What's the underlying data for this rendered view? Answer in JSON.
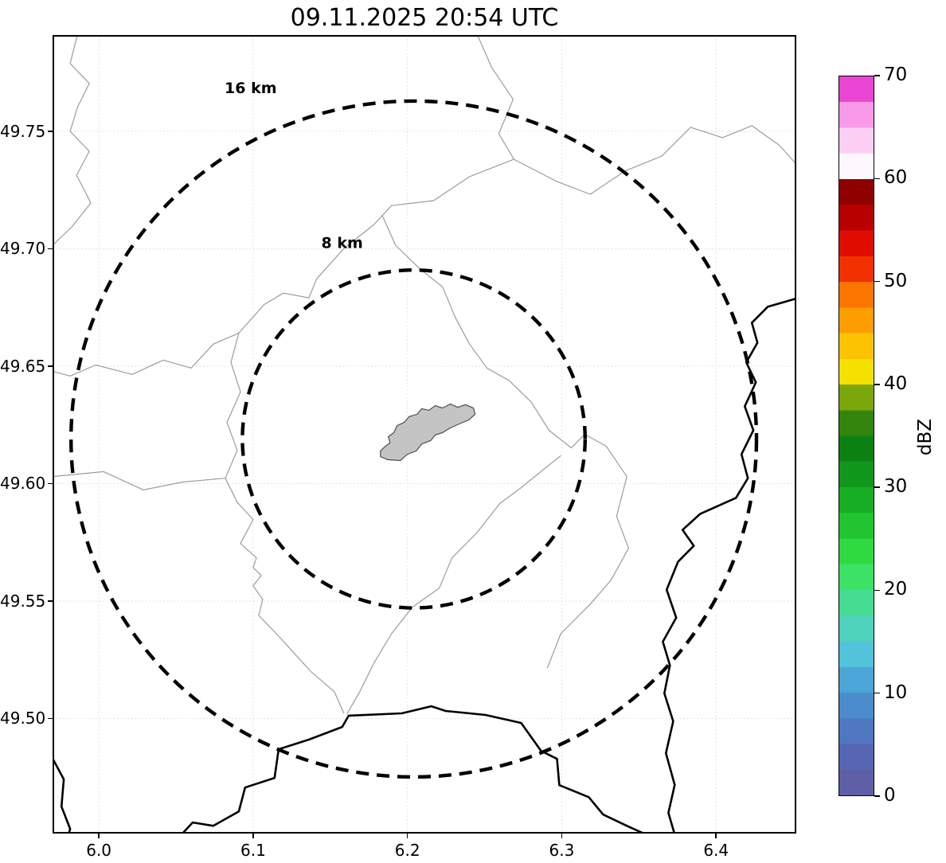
{
  "figure": {
    "title": "09.11.2025 20:54 UTC"
  },
  "chart_data": {
    "type": "map",
    "subtype": "radar-range-ring-map",
    "title": "09.11.2025 20:54 UTC",
    "xlim": [
      5.97,
      6.452
    ],
    "ylim": [
      49.451,
      49.791
    ],
    "x_tick_values": [
      6.0,
      6.1,
      6.2,
      6.3,
      6.4
    ],
    "x_tick_labels": [
      "6.0",
      "6.1",
      "6.2",
      "6.3",
      "6.4"
    ],
    "y_tick_values": [
      49.5,
      49.55,
      49.6,
      49.65,
      49.7,
      49.75
    ],
    "y_tick_labels": [
      "49.50",
      "49.55",
      "49.60",
      "49.65",
      "49.70",
      "49.75"
    ],
    "grid": {
      "visible": true,
      "color": "#dcdcdc"
    },
    "radar_echoes": [],
    "range_rings": {
      "center_lon": 6.2041,
      "center_lat": 49.619,
      "radii_km": [
        8,
        16
      ],
      "color": "#000000",
      "labels": [
        {
          "text": "8 km",
          "lon": 6.1577,
          "lat": 49.7004
        },
        {
          "text": "16 km",
          "lon": 6.0984,
          "lat": 49.7663
        }
      ]
    },
    "city_polygon": {
      "fill": "#c4c4c4",
      "stroke": "#4d4d4d",
      "points": [
        [
          6.1825,
          49.6115
        ],
        [
          6.1871,
          49.6102
        ],
        [
          6.1954,
          49.6098
        ],
        [
          6.2,
          49.6125
        ],
        [
          6.2057,
          49.6139
        ],
        [
          6.2093,
          49.6169
        ],
        [
          6.215,
          49.6183
        ],
        [
          6.218,
          49.6207
        ],
        [
          6.2227,
          49.6217
        ],
        [
          6.2278,
          49.6237
        ],
        [
          6.2335,
          49.6254
        ],
        [
          6.2397,
          49.6271
        ],
        [
          6.2438,
          49.6295
        ],
        [
          6.2428,
          49.6322
        ],
        [
          6.2376,
          49.6336
        ],
        [
          6.2325,
          49.6325
        ],
        [
          6.2278,
          49.6339
        ],
        [
          6.2227,
          49.6322
        ],
        [
          6.218,
          49.6332
        ],
        [
          6.2139,
          49.6312
        ],
        [
          6.2093,
          49.6319
        ],
        [
          6.2062,
          49.6295
        ],
        [
          6.201,
          49.6285
        ],
        [
          6.1979,
          49.6261
        ],
        [
          6.1933,
          49.6247
        ],
        [
          6.1912,
          49.6217
        ],
        [
          6.1876,
          49.62
        ],
        [
          6.1887,
          49.6173
        ],
        [
          6.1851,
          49.6156
        ],
        [
          6.1825,
          49.6139
        ]
      ]
    },
    "country_borders": {
      "color": "#000000",
      "width": 2.6,
      "paths": [
        [
          [
            6.4515,
            49.6787
          ],
          [
            6.4335,
            49.6753
          ],
          [
            6.4232,
            49.6685
          ],
          [
            6.4268,
            49.66
          ],
          [
            6.4196,
            49.6516
          ],
          [
            6.4258,
            49.6431
          ],
          [
            6.4186,
            49.6329
          ],
          [
            6.4242,
            49.6227
          ],
          [
            6.4165,
            49.6125
          ],
          [
            6.4206,
            49.6023
          ],
          [
            6.4129,
            49.5939
          ],
          [
            6.3897,
            49.5871
          ],
          [
            6.3783,
            49.5803
          ],
          [
            6.3856,
            49.5735
          ],
          [
            6.3753,
            49.5667
          ],
          [
            6.368,
            49.5548
          ],
          [
            6.3742,
            49.5429
          ],
          [
            6.3655,
            49.5327
          ],
          [
            6.3701,
            49.5226
          ],
          [
            6.3665,
            49.5107
          ],
          [
            6.3722,
            49.4988
          ],
          [
            6.3675,
            49.4852
          ],
          [
            6.3732,
            49.4717
          ],
          [
            6.3691,
            49.4598
          ],
          [
            6.3732,
            49.4506
          ]
        ],
        [
          [
            6.0536,
            49.4506
          ],
          [
            6.0608,
            49.4557
          ],
          [
            6.0742,
            49.4543
          ],
          [
            6.0907,
            49.4604
          ],
          [
            6.0948,
            49.4706
          ],
          [
            6.1139,
            49.4747
          ],
          [
            6.1165,
            49.4869
          ],
          [
            6.1361,
            49.491
          ],
          [
            6.1577,
            49.4964
          ],
          [
            6.1619,
            49.5012
          ],
          [
            6.1964,
            49.5022
          ],
          [
            6.2155,
            49.5052
          ],
          [
            6.2247,
            49.5032
          ],
          [
            6.2505,
            49.5015
          ],
          [
            6.2737,
            49.4981
          ],
          [
            6.2866,
            49.4862
          ],
          [
            6.2969,
            49.4828
          ],
          [
            6.2984,
            49.4716
          ],
          [
            6.3175,
            49.4665
          ],
          [
            6.3268,
            49.4591
          ],
          [
            6.3422,
            49.4543
          ],
          [
            6.3546,
            49.4506
          ]
        ],
        [
          [
            5.9701,
            49.4829
          ],
          [
            5.9773,
            49.4741
          ],
          [
            5.9758,
            49.4625
          ],
          [
            5.9814,
            49.453
          ],
          [
            5.9804,
            49.4506
          ]
        ]
      ]
    },
    "admin_lines": {
      "color": "#9c9c9c",
      "width": 1.2,
      "paths": [
        [
          [
            5.9861,
            49.7911
          ],
          [
            5.9814,
            49.7789
          ],
          [
            5.9938,
            49.7704
          ],
          [
            5.9861,
            49.7602
          ],
          [
            5.9814,
            49.75
          ],
          [
            5.9938,
            49.7415
          ],
          [
            5.9856,
            49.7313
          ],
          [
            5.9948,
            49.7195
          ],
          [
            5.9825,
            49.7093
          ],
          [
            5.9701,
            49.7015
          ]
        ],
        [
          [
            6.2453,
            49.7911
          ],
          [
            6.2546,
            49.7772
          ],
          [
            6.2685,
            49.7636
          ],
          [
            6.2592,
            49.749
          ],
          [
            6.269,
            49.7381
          ],
          [
            6.2969,
            49.7286
          ],
          [
            6.3185,
            49.7232
          ],
          [
            6.3407,
            49.733
          ],
          [
            6.3649,
            49.7395
          ],
          [
            6.3835,
            49.7517
          ],
          [
            6.4041,
            49.7473
          ],
          [
            6.4232,
            49.7524
          ],
          [
            6.4412,
            49.7439
          ],
          [
            6.4515,
            49.7364
          ]
        ],
        [
          [
            6.269,
            49.7381
          ],
          [
            6.2402,
            49.7307
          ],
          [
            6.217,
            49.7205
          ],
          [
            6.1897,
            49.7184
          ],
          [
            6.1783,
            49.7103
          ],
          [
            6.1588,
            49.7001
          ],
          [
            6.1412,
            49.6872
          ],
          [
            6.1361,
            49.6791
          ],
          [
            6.1196,
            49.6811
          ],
          [
            6.1072,
            49.6763
          ],
          [
            6.0907,
            49.6641
          ],
          [
            6.0742,
            49.6594
          ],
          [
            6.0598,
            49.6492
          ],
          [
            6.0417,
            49.6526
          ],
          [
            6.0216,
            49.6465
          ],
          [
            5.9979,
            49.6505
          ],
          [
            5.9814,
            49.6458
          ],
          [
            5.9701,
            49.6478
          ]
        ],
        [
          [
            6.0907,
            49.6641
          ],
          [
            6.0856,
            49.6516
          ],
          [
            6.0918,
            49.639
          ],
          [
            6.083,
            49.6261
          ],
          [
            6.0897,
            49.6142
          ],
          [
            6.082,
            49.6023
          ],
          [
            6.0897,
            49.5921
          ],
          [
            6.1,
            49.5847
          ],
          [
            6.0918,
            49.5745
          ],
          [
            6.1021,
            49.5684
          ],
          [
            6.1,
            49.5643
          ],
          [
            6.1052,
            49.5609
          ],
          [
            6.1,
            49.5565
          ],
          [
            6.1062,
            49.5507
          ],
          [
            6.1036,
            49.5439
          ],
          [
            6.1175,
            49.5344
          ],
          [
            6.1371,
            49.5202
          ],
          [
            6.1526,
            49.5114
          ],
          [
            6.1588,
            49.5022
          ]
        ],
        [
          [
            5.9701,
            49.603
          ],
          [
            6.0031,
            49.6051
          ],
          [
            6.0289,
            49.5973
          ],
          [
            6.0546,
            49.6007
          ],
          [
            6.082,
            49.6023
          ]
        ],
        [
          [
            6.1835,
            49.7144
          ],
          [
            6.1923,
            49.7015
          ],
          [
            6.2082,
            49.6913
          ],
          [
            6.2227,
            49.6838
          ],
          [
            6.2309,
            49.6709
          ],
          [
            6.2402,
            49.6594
          ],
          [
            6.2515,
            49.6492
          ],
          [
            6.266,
            49.6438
          ],
          [
            6.2804,
            49.6346
          ],
          [
            6.2917,
            49.6227
          ],
          [
            6.3062,
            49.6152
          ],
          [
            6.3149,
            49.621
          ],
          [
            6.3288,
            49.6159
          ],
          [
            6.3422,
            49.603
          ],
          [
            6.3355,
            49.5861
          ],
          [
            6.3433,
            49.5725
          ],
          [
            6.3319,
            49.5589
          ],
          [
            6.3185,
            49.5487
          ],
          [
            6.2994,
            49.5361
          ],
          [
            6.2907,
            49.5215
          ]
        ],
        [
          [
            6.2994,
            49.6119
          ],
          [
            6.2876,
            49.6057
          ],
          [
            6.2737,
            49.5983
          ],
          [
            6.2598,
            49.5915
          ],
          [
            6.2453,
            49.5793
          ],
          [
            6.2289,
            49.5684
          ],
          [
            6.2206,
            49.5555
          ],
          [
            6.2031,
            49.5473
          ],
          [
            6.1897,
            49.5361
          ],
          [
            6.1783,
            49.5236
          ],
          [
            6.1691,
            49.5114
          ],
          [
            6.1608,
            49.5019
          ]
        ]
      ]
    },
    "colorbar": {
      "label": "dBZ",
      "min": 0,
      "max": 70,
      "tick_values": [
        0,
        10,
        20,
        30,
        40,
        50,
        60,
        70
      ],
      "tick_labels": [
        "0",
        "10",
        "20",
        "30",
        "40",
        "50",
        "60",
        "70"
      ],
      "segment_step_dbz": 2.5,
      "colors_bottom_to_top": [
        "#5f5fa7",
        "#5666b3",
        "#4f77c2",
        "#4b8ccd",
        "#4ba5d6",
        "#52c3da",
        "#4fd3bc",
        "#45dc92",
        "#3be266",
        "#2eda40",
        "#20c52f",
        "#17ae24",
        "#10981c",
        "#0b8114",
        "#32860c",
        "#7ca70a",
        "#f4e100",
        "#fcc400",
        "#fc9e00",
        "#fa7600",
        "#f23000",
        "#df0d00",
        "#b80000",
        "#8f0000",
        "#fef7fd",
        "#fccff5",
        "#f99ae9",
        "#ea46d4"
      ]
    }
  }
}
